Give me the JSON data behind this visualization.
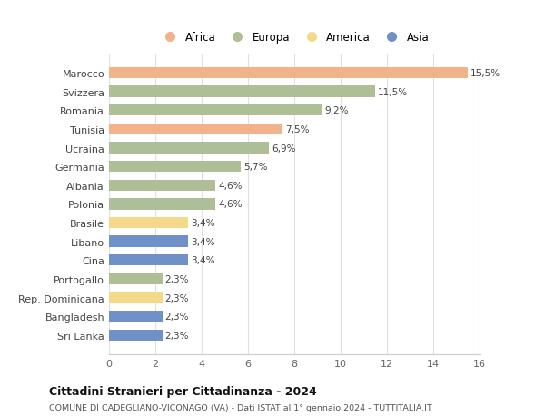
{
  "categories": [
    "Marocco",
    "Svizzera",
    "Romania",
    "Tunisia",
    "Ucraina",
    "Germania",
    "Albania",
    "Polonia",
    "Brasile",
    "Libano",
    "Cina",
    "Portogallo",
    "Rep. Dominicana",
    "Bangladesh",
    "Sri Lanka"
  ],
  "values": [
    15.5,
    11.5,
    9.2,
    7.5,
    6.9,
    5.7,
    4.6,
    4.6,
    3.4,
    3.4,
    3.4,
    2.3,
    2.3,
    2.3,
    2.3
  ],
  "labels": [
    "15,5%",
    "11,5%",
    "9,2%",
    "7,5%",
    "6,9%",
    "5,7%",
    "4,6%",
    "4,6%",
    "3,4%",
    "3,4%",
    "3,4%",
    "2,3%",
    "2,3%",
    "2,3%",
    "2,3%"
  ],
  "continents": [
    "Africa",
    "Europa",
    "Europa",
    "Africa",
    "Europa",
    "Europa",
    "Europa",
    "Europa",
    "America",
    "Asia",
    "Asia",
    "Europa",
    "America",
    "Asia",
    "Asia"
  ],
  "colors": {
    "Africa": "#F2B28A",
    "Europa": "#AEBE96",
    "America": "#F5D98A",
    "Asia": "#7090C8"
  },
  "legend_labels": [
    "Africa",
    "Europa",
    "America",
    "Asia"
  ],
  "legend_colors": [
    "#F2B28A",
    "#AEBE96",
    "#F5D98A",
    "#7090C8"
  ],
  "xlim": [
    0,
    16
  ],
  "xticks": [
    0,
    2,
    4,
    6,
    8,
    10,
    12,
    14,
    16
  ],
  "title": "Cittadini Stranieri per Cittadinanza - 2024",
  "subtitle": "COMUNE DI CADEGLIANO-VICONAGO (VA) - Dati ISTAT al 1° gennaio 2024 - TUTTITALIA.IT",
  "background_color": "#ffffff",
  "grid_color": "#e0e0e0"
}
